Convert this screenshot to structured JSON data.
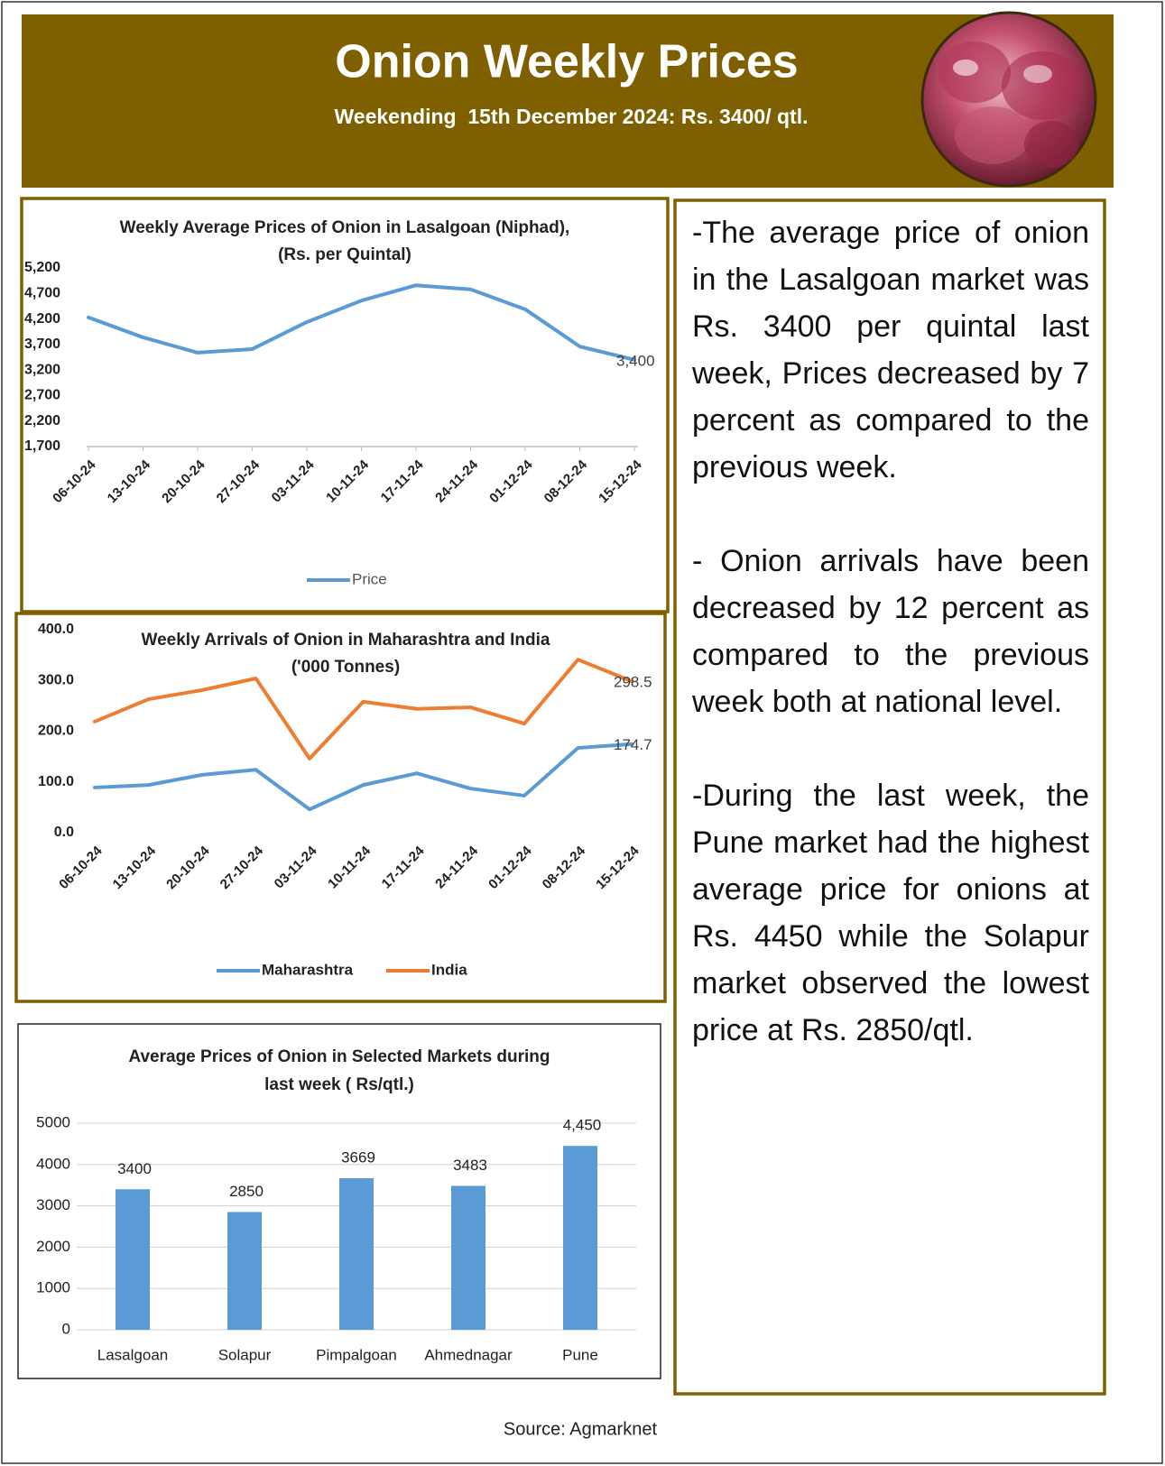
{
  "header": {
    "title": "Onion Weekly Prices",
    "subtitle": "Weekending  15th December 2024: Rs. 3400/ qtl."
  },
  "chart_data": [
    {
      "type": "line",
      "title": [
        "Weekly Average Prices of Onion in Lasalgoan (Niphad),",
        "(Rs. per Quintal)"
      ],
      "categories": [
        "06-10-24",
        "13-10-24",
        "20-10-24",
        "27-10-24",
        "03-11-24",
        "10-11-24",
        "17-11-24",
        "24-11-24",
        "01-12-24",
        "08-12-24",
        "15-12-24"
      ],
      "series": [
        {
          "name": "Price",
          "color": "#5b9bd5",
          "values": [
            4230,
            3840,
            3540,
            3610,
            4140,
            4560,
            4860,
            4780,
            4390,
            3660,
            3400
          ],
          "value_labels": [
            null,
            null,
            null,
            null,
            null,
            null,
            null,
            null,
            null,
            null,
            "3,400"
          ]
        }
      ],
      "ylim": [
        1700,
        5200
      ],
      "yticks": [
        {
          "value": 1700,
          "label": "1,700"
        },
        {
          "value": 2200,
          "label": "2,200"
        },
        {
          "value": 2700,
          "label": "2,700"
        },
        {
          "value": 3200,
          "label": "3,200"
        },
        {
          "value": 3700,
          "label": "3,700"
        },
        {
          "value": 4200,
          "label": "4,200"
        },
        {
          "value": 4700,
          "label": "4,700"
        },
        {
          "value": 5200,
          "label": "5,200"
        }
      ],
      "legend": "bottom"
    },
    {
      "type": "line",
      "title": [
        "Weekly Arrivals of Onion in Maharashtra and India",
        "('000 Tonnes)"
      ],
      "categories": [
        "06-10-24",
        "13-10-24",
        "20-10-24",
        "27-10-24",
        "03-11-24",
        "10-11-24",
        "17-11-24",
        "24-11-24",
        "01-12-24",
        "08-12-24",
        "15-12-24"
      ],
      "series": [
        {
          "name": "Maharashtra",
          "color": "#5b9bd5",
          "values": [
            89,
            94,
            114,
            124,
            46,
            94,
            117,
            87,
            73,
            167,
            174.7
          ]
        },
        {
          "name": "India",
          "color": "#ed7d31",
          "values": [
            219,
            263,
            281,
            304,
            146,
            258,
            244,
            247,
            215,
            341,
            298.5
          ]
        }
      ],
      "ylim": [
        0,
        400
      ],
      "yticks": [
        {
          "value": 0,
          "label": "0.0"
        },
        {
          "value": 100,
          "label": "100.0"
        },
        {
          "value": 200,
          "label": "200.0"
        },
        {
          "value": 300,
          "label": "300.0"
        },
        {
          "value": 400,
          "label": "400.0"
        }
      ],
      "legend": "bottom"
    },
    {
      "type": "bar",
      "title": [
        "Average Prices of Onion in Selected Markets during",
        "last week ( Rs/qtl.)"
      ],
      "categories": [
        "Lasalgoan",
        "Solapur",
        "Pimpalgoan",
        "Ahmednagar",
        "Pune"
      ],
      "values": [
        3400,
        2850,
        3669,
        3483,
        4450
      ],
      "value_labels": [
        "3400",
        "2850",
        "3669",
        "3483",
        "4,450"
      ],
      "color": "#5b9bd5",
      "ylim": [
        0,
        5000
      ],
      "yticks": [
        0,
        1000,
        2000,
        3000,
        4000,
        5000
      ],
      "grid": true
    }
  ],
  "notes": [
    "-The average price of onion in the Lasalgoan market was Rs. 3400 per quintal last week, Prices decreased by 7 percent as compared to the previous week.",
    "- Onion arrivals have been decreased by 12 percent as compared to the previous week both at national level.",
    "-During the last week, the Pune market had the highest average price for onions at Rs. 4450 while the Solapur market observed the lowest price at Rs. 2850/qtl."
  ],
  "source": "Source: Agmarknet"
}
